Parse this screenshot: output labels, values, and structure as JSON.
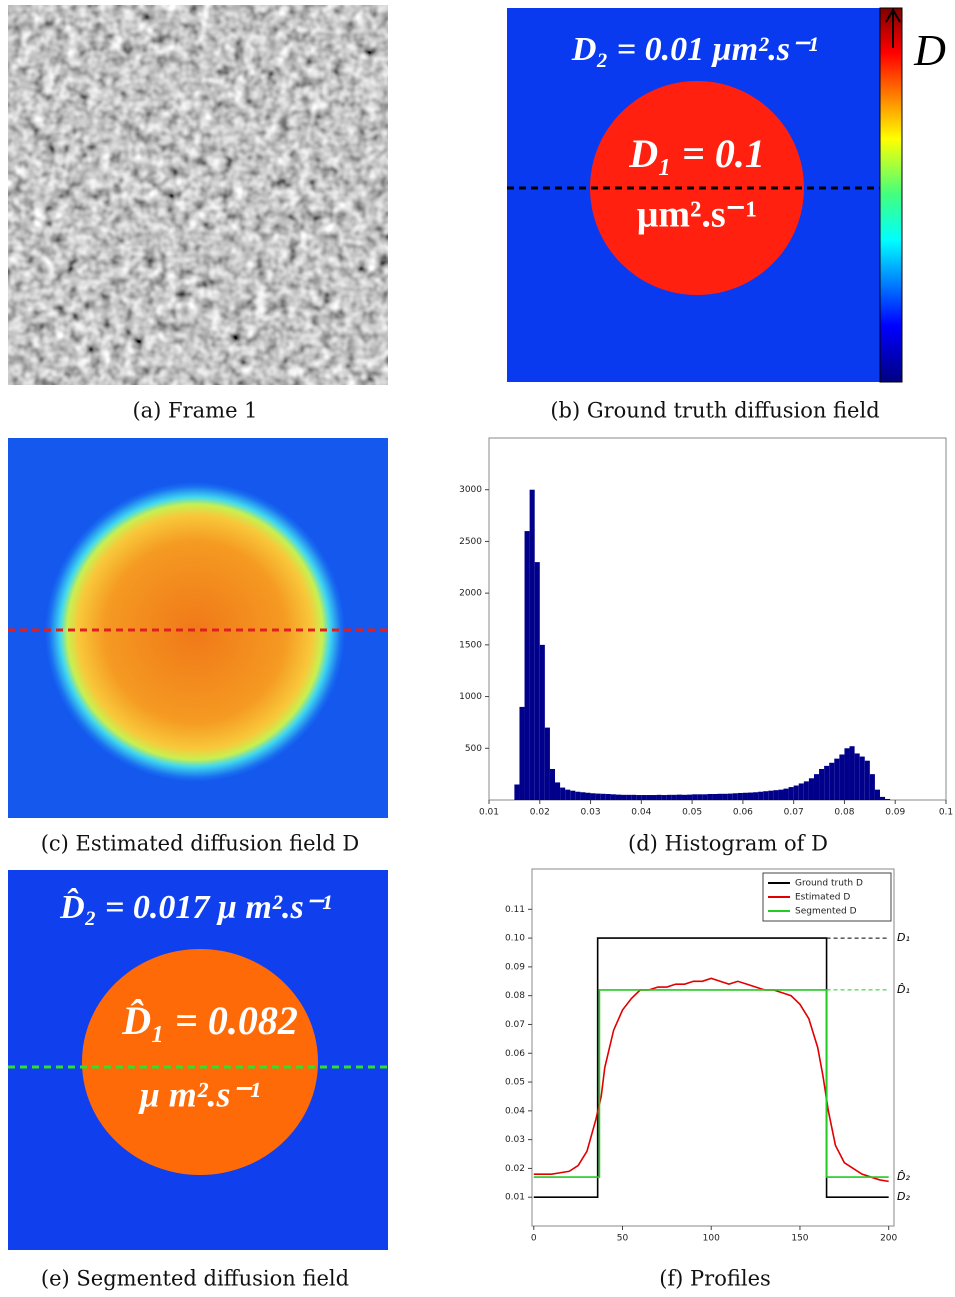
{
  "figure": {
    "captions": [
      "(a) Frame 1",
      "(b) Ground truth diffusion field",
      "(c) Estimated diffusion field D",
      "(d) Histogram of D",
      "(e) Segmented diffusion field",
      "(f) Profiles"
    ],
    "b_d2": "D₂ = 0.01 μm².s⁻¹",
    "b_d1": "D₁ = 0.1",
    "b_d1_unit": "μm².s⁻¹",
    "b_colorbar": "D",
    "e_d2": "D̂₂ = 0.017 μ m².s⁻¹",
    "e_d1": "D̂₁ = 0.082",
    "e_d1_unit": "μ m².s⁻¹"
  },
  "chart_data": [
    {
      "type": "histogram",
      "color": "#00008b",
      "bins": [
        0.015,
        0.016,
        0.017,
        0.018,
        0.019,
        0.02,
        0.021,
        0.022,
        0.023,
        0.024,
        0.025,
        0.026,
        0.027,
        0.028,
        0.029,
        0.03,
        0.031,
        0.032,
        0.033,
        0.034,
        0.035,
        0.036,
        0.037,
        0.038,
        0.039,
        0.04,
        0.041,
        0.042,
        0.043,
        0.044,
        0.045,
        0.046,
        0.047,
        0.048,
        0.049,
        0.05,
        0.051,
        0.052,
        0.053,
        0.054,
        0.055,
        0.056,
        0.057,
        0.058,
        0.059,
        0.06,
        0.061,
        0.062,
        0.063,
        0.064,
        0.065,
        0.066,
        0.067,
        0.068,
        0.069,
        0.07,
        0.071,
        0.072,
        0.073,
        0.074,
        0.075,
        0.076,
        0.077,
        0.078,
        0.079,
        0.08,
        0.081,
        0.082,
        0.083,
        0.084,
        0.085,
        0.086,
        0.087,
        0.088,
        0.089
      ],
      "values": [
        150,
        900,
        2600,
        3000,
        2300,
        1500,
        700,
        300,
        170,
        120,
        100,
        90,
        80,
        75,
        70,
        65,
        62,
        60,
        58,
        55,
        52,
        50,
        50,
        50,
        48,
        48,
        48,
        48,
        50,
        48,
        50,
        50,
        52,
        50,
        52,
        55,
        55,
        55,
        58,
        58,
        60,
        60,
        62,
        65,
        68,
        70,
        72,
        75,
        80,
        85,
        90,
        95,
        100,
        110,
        125,
        140,
        160,
        180,
        210,
        250,
        300,
        330,
        360,
        400,
        440,
        500,
        520,
        450,
        420,
        380,
        250,
        100,
        30,
        10
      ],
      "xlim": [
        0.01,
        0.1
      ],
      "xticks": [
        0.01,
        0.02,
        0.03,
        0.04,
        0.05,
        0.06,
        0.07,
        0.08,
        0.09,
        0.1
      ],
      "ylim": [
        0,
        3500
      ],
      "yticks": [
        500,
        1000,
        1500,
        2000,
        2500,
        3000
      ]
    },
    {
      "type": "line",
      "series": [
        {
          "name": "Ground truth D",
          "color": "#000000",
          "x": [
            0,
            36,
            36,
            165,
            165,
            200
          ],
          "values": [
            0.01,
            0.01,
            0.1,
            0.1,
            0.01,
            0.01
          ]
        },
        {
          "name": "Estimated D",
          "color": "#e00000",
          "x": [
            0,
            5,
            10,
            15,
            20,
            25,
            30,
            35,
            38,
            40,
            45,
            50,
            55,
            60,
            65,
            70,
            75,
            80,
            85,
            90,
            95,
            100,
            105,
            110,
            115,
            120,
            125,
            130,
            135,
            140,
            145,
            150,
            155,
            160,
            163,
            166,
            170,
            175,
            180,
            185,
            190,
            195,
            200
          ],
          "values": [
            0.018,
            0.018,
            0.018,
            0.0185,
            0.019,
            0.021,
            0.026,
            0.037,
            0.045,
            0.055,
            0.068,
            0.075,
            0.079,
            0.082,
            0.082,
            0.083,
            0.083,
            0.084,
            0.084,
            0.085,
            0.085,
            0.086,
            0.085,
            0.084,
            0.085,
            0.084,
            0.083,
            0.082,
            0.082,
            0.081,
            0.08,
            0.077,
            0.072,
            0.062,
            0.052,
            0.04,
            0.028,
            0.022,
            0.02,
            0.018,
            0.017,
            0.016,
            0.0155
          ]
        },
        {
          "name": "Segmented D",
          "color": "#22cc22",
          "x": [
            0,
            37,
            37,
            165,
            165,
            200
          ],
          "values": [
            0.017,
            0.017,
            0.082,
            0.082,
            0.017,
            0.017
          ]
        }
      ],
      "annotations": [
        {
          "label": "D₁",
          "value": 0.1,
          "color": "#000000",
          "x": [
            165,
            200
          ]
        },
        {
          "label": "D̂₁",
          "value": 0.082,
          "color": "#22cc22",
          "x": [
            165,
            200
          ]
        },
        {
          "label": "D̂₂",
          "value": 0.017,
          "color": "#22cc22",
          "x": [
            165,
            200
          ]
        },
        {
          "label": "D₂",
          "value": 0.01,
          "color": "#000000",
          "x": [
            165,
            200
          ]
        }
      ],
      "xlim": [
        -1,
        203
      ],
      "xticks": [
        0,
        50,
        100,
        150,
        200
      ],
      "ylim": [
        0,
        0.124
      ],
      "yticks": [
        0.01,
        0.02,
        0.03,
        0.04,
        0.05,
        0.06,
        0.07,
        0.08,
        0.09,
        {
          "value": 0.1,
          "label": "0.10"
        },
        0.11
      ],
      "legend": "top-right"
    }
  ]
}
